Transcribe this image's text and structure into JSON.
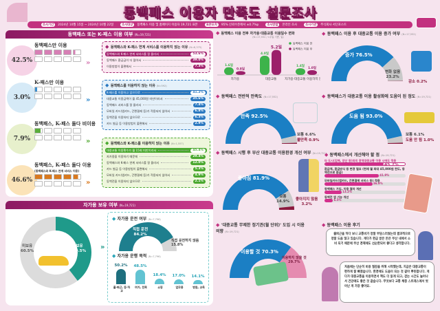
{
  "header": {
    "title": "동백패스 이용자 만족도 설문조사",
    "info": [
      {
        "tag": "조사기간",
        "text": "2024년 10월 15일 ~ 2024년 10월 22일"
      },
      {
        "tag": "조사대상",
        "text": "동백패스 이용 및 홈페이지 이용자 19,721 표본"
      },
      {
        "tag": "표본오차",
        "text": "95% 신뢰수준에서 ±0.7%p"
      },
      {
        "tag": "조사방법",
        "text": "온라인 조사"
      },
      {
        "tag": "조사기관",
        "text": "주식회사 서던포스트"
      }
    ]
  },
  "usage": {
    "title": "동백패스 또는 K-패스 이용 여부",
    "n": "(N=19,721)",
    "cards": [
      {
        "label": "동백패스만 이용",
        "sub": "",
        "value": "42.5%",
        "pct": 42.5,
        "color": "#d77fb5",
        "circle": "#f6d3e6"
      },
      {
        "label": "K-패스만 이용",
        "sub": "",
        "value": "3.0%",
        "pct": 3.0,
        "color": "#3b8fd0",
        "circle": "#d6eaf7"
      },
      {
        "label": "동백패스, K-패스 둘다 비이용",
        "sub": "",
        "value": "7.9%",
        "pct": 7.9,
        "color": "#5aad3c",
        "circle": "#e7f0cc"
      },
      {
        "label": "동백패스, K-패스 둘다 이용",
        "sub": "(동백패스와 K-패스 연계 서비스 이용)",
        "value": "46.6%",
        "pct": 46.6,
        "color": "#d9791f",
        "circle": "#fbe3b8"
      }
    ],
    "reasons": [
      {
        "title": "동백패스와 K-패스 연계 서비스를 이용하지 않는 이유",
        "n": "(N=8,375)",
        "color": "#a3246f",
        "bg": "#fbe9f2",
        "items": [
          [
            "동백패스와 K-패스 연계 서비스를 잘 몰라서",
            "53.6%"
          ],
          [
            "동백패스 환급금이 더 많아서",
            "39.0%"
          ],
          [
            "이용방법이 불편해서",
            "7.3%"
          ]
        ]
      },
      {
        "title": "동백패스를 이용하지 않는 이유",
        "n": "(N=592)",
        "color": "#2a78c0",
        "bg": "#e5f1fa",
        "items": [
          [
            "K-패스를 이용하고 있으므로",
            "41.2%"
          ],
          [
            "대중교통 이용금액이 월 45,000원 미만이라서",
            "35.6%"
          ],
          [
            "동백패스 서비스를 잘 몰라서",
            "7.4%"
          ],
          [
            "모바일 카드(앱카드, 간편결제 등)가 적용되지 않아서",
            "6.8%"
          ],
          [
            "동백전을 이용하지 않으므로",
            "6.3%"
          ],
          [
            "카드 발급 등 이용방법이 불편해서",
            "2.9%"
          ]
        ]
      },
      {
        "title": "동백패스와 K-패스를 이용하지 않는 이유",
        "n": "(N=1,557)",
        "color": "#4aa82f",
        "bg": "#eef6dc",
        "items": [
          [
            "대중교통 이용횟수가 월 15회 미만이라서",
            "45.4%"
          ],
          [
            "자가용을 이용하기 때문에",
            "29.4%"
          ],
          [
            "동백패스와 K-패스 연계 서비스를 잘 몰라서",
            "12.0%"
          ],
          [
            "카드 발급 등 이용방법이 불편해서",
            "5.3%"
          ],
          [
            "모바일 카드(앱카드, 간편결제 등)가 적용되지 않아서",
            "4.9%"
          ],
          [
            "동백전을 이용하지 않으므로",
            "2.1%"
          ]
        ]
      }
    ]
  },
  "car": {
    "title": "자가용 보유 여부",
    "n": "(N=19,721)",
    "own": {
      "no_label": "미보유",
      "no_value": "60.5%",
      "no": 60.5,
      "yes_label": "보유",
      "yes_value": "39.5%",
      "yes": 39.5,
      "color": "#1f9a8a"
    },
    "drive": {
      "title": "자가용 운전 여부",
      "n": "(N=7,796)",
      "a_label": "직접 운전",
      "a_value": "84.2%",
      "a": 84.2,
      "b_label": "직접 운전하지 않음",
      "b_value": "15.8%",
      "b": 15.8
    },
    "purpose": {
      "title": "자가용 운행 목적",
      "n": "(N=7,796)",
      "items": [
        {
          "label": "출·퇴근, 등·하교",
          "value": "50.2%",
          "v": 50.2
        },
        {
          "label": "여가, 친목",
          "value": "48.5%",
          "v": 48.5
        },
        {
          "label": "쇼핑",
          "value": "18.4%",
          "v": 18.4
        },
        {
          "label": "업무용",
          "value": "17.0%",
          "v": 17.0
        },
        {
          "label": "병원, 교육",
          "value": "14.1%",
          "v": 14.1
        }
      ]
    }
  },
  "chart_data": {
    "type": "bar",
    "title": "동백패스 이용 전후 자가용·대중교통 이용일수 변화",
    "n": "(N=17,552 / 1주일 기준, 일)",
    "categories": [
      "자가용",
      "대중교통",
      "자가용·대중교통 이용하지 않는 날"
    ],
    "series": [
      {
        "name": "동백패스 이용 전",
        "values": [
          1.6,
          4.0,
          1.4
        ],
        "labels": [
          "1.6일",
          "4.0일",
          "1.4일"
        ],
        "color": "#3db34a"
      },
      {
        "name": "동백패스 이용 후",
        "values": [
          0.8,
          5.2,
          1.0
        ],
        "labels": [
          "0.8일",
          "5.2일",
          "1.0일"
        ],
        "color": "#9c1f6a"
      }
    ],
    "ylim": [
      0,
      6
    ]
  },
  "gauges": {
    "bus": {
      "title": "동백패스 이용 후 대중교통 이용 증가 여부",
      "n": "(N=17,552)",
      "segs": [
        {
          "label": "증가",
          "value": "76.5%",
          "v": 76.5,
          "color": "#1b7fc4"
        },
        {
          "label": "변화 없음",
          "value": "23.2%",
          "v": 23.2,
          "color": "#c9c9c9"
        },
        {
          "label": "감소",
          "value": "0.2%",
          "v": 0.2,
          "color": "#8b1a3e"
        }
      ]
    },
    "satisfaction": {
      "title": "동백패스 전반적 만족도",
      "n": "(N=17,552)",
      "segs": [
        {
          "label": "만족",
          "value": "92.5%",
          "v": 92.5,
          "color": "#1b7fc4"
        },
        {
          "label": "보통",
          "value": "6.6%",
          "v": 6.6,
          "color": "#c9c9c9"
        },
        {
          "label": "불만족",
          "value": "0.9%",
          "v": 0.9,
          "color": "#8b1a3e"
        }
      ]
    },
    "help": {
      "title": "동백패스가 대중교통 이용 활성화에 도움이 된 정도",
      "n": "(N=19,721)",
      "segs": [
        {
          "label": "도움 됨",
          "value": "93.0%",
          "v": 93.0,
          "color": "#1b7fc4"
        },
        {
          "label": "보통",
          "value": "6.1%",
          "v": 6.1,
          "color": "#c9c9c9"
        },
        {
          "label": "도움 안 됨",
          "value": "1.0%",
          "v": 1.0,
          "color": "#8b1a3e"
        }
      ]
    },
    "environment": {
      "title": "동백패스 시행 후 부산 대중교통 이용환경 개선 여부",
      "n": "(N=19,721)",
      "segs": [
        {
          "label": "좋아짐",
          "value": "81.9%",
          "v": 81.9,
          "color": "#1b7fc4"
        },
        {
          "label": "보통",
          "value": "14.9%",
          "v": 14.9,
          "color": "#c9c9c9"
        },
        {
          "label": "좋아지지 않음",
          "value": "3.2%",
          "v": 3.2,
          "color": "#8b1a3e"
        }
      ]
    },
    "ticket": {
      "title": "'대중교통 무제한 정기권(월 단위)' 도입 시 이용 의향",
      "n": "(N=19,721)",
      "segs": [
        {
          "label": "이용할 것",
          "value": "70.3%",
          "v": 70.3,
          "color": "#1b7fc4"
        },
        {
          "label": "이용하지 않을 것",
          "value": "29.7%",
          "v": 29.7,
          "color": "#e58bb0"
        }
      ]
    }
  },
  "improvement": {
    "title": "동백패스에서 개선해야 할 점",
    "n": "(N=19,721)",
    "items": [
      {
        "label": "타 도시(김해, 양산 등)와의 광역대중교통 이용 시에도 적용",
        "value": "45.7%",
        "v": 45.7
      },
      {
        "label": "환급액, 환급방식 등 변경 필요 (현재 월 최대 45,000원 한도, 동백전으로 환급)",
        "value": "41.9%",
        "v": 41.9
      },
      {
        "label": "모바일카드(앱카드, 간편결제 서비스 등) 적용",
        "value": "36.9%",
        "v": 36.9
      },
      {
        "label": "동백패스 가입, 이용 절차 개선",
        "value": "13.2%",
        "v": 13.2
      },
      {
        "label": "동백전 앱 기능 개선",
        "value": "6.5%",
        "v": 6.5
      }
    ]
  },
  "reviews": {
    "title": "동백패스 이용 후기",
    "quotes": [
      "출퇴근을 하다 보니 교통비가 정말 부담스러웠는데 결과적으로 정말 도움 많고 있습니다. 게다가 환급 받은 돈은 부산 내에서 소비 되기 때문에 부산 경제에도 선순환되어 좋다고 생각합니다.",
      "처음에는 단순히 비용 절감을 위해 시작했는데, 지금은 대중교통이 편하게 잘 빠졌습니다. 환경에도 도움이 되는 것 같아 뿌듯합니다. 게다가 대중교통을 이용하면서 책도 더 읽게 되고, 걷는 시간도 늘어나서 건강에도 좋은 것 같습니다. 무엇보다 교통 체증 스트레스에서 벗어난 게 가장 좋아요."
    ]
  }
}
